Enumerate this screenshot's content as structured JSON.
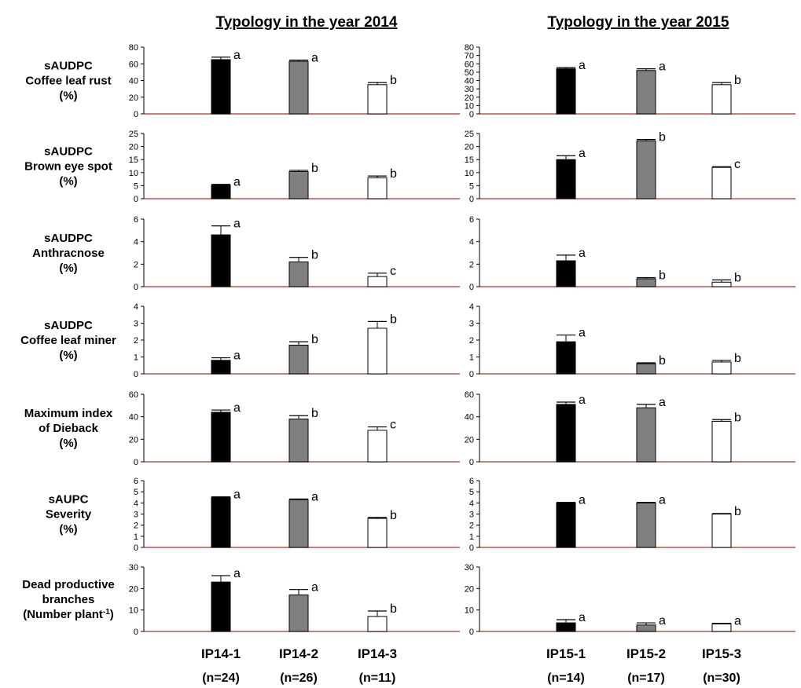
{
  "columns": [
    {
      "title": "Typology in the year 2014",
      "groups": [
        "IP14-1",
        "IP14-2",
        "IP14-3"
      ],
      "counts": [
        "(n=24)",
        "(n=26)",
        "(n=11)"
      ]
    },
    {
      "title": "Typology in the year 2015",
      "groups": [
        "IP15-1",
        "IP15-2",
        "IP15-3"
      ],
      "counts": [
        "(n=14)",
        "(n=17)",
        "(n=30)"
      ]
    }
  ],
  "colors": {
    "bars": [
      "#000000",
      "#808080",
      "#ffffff"
    ],
    "axis": "#000000",
    "baseline": "#c0504d"
  },
  "chart_data": [
    {
      "type": "bar",
      "row_label": [
        "sAUDPC",
        "Coffee leaf rust",
        "(%)"
      ],
      "year": "2014",
      "ylim": [
        0,
        80
      ],
      "yticks": [
        "0",
        "20",
        "40",
        "60",
        "80"
      ],
      "categories": [
        "IP14-1",
        "IP14-2",
        "IP14-3"
      ],
      "values": [
        65,
        63,
        35
      ],
      "errors": [
        3,
        1.5,
        2.5
      ],
      "letters": [
        "a",
        "a",
        "b"
      ]
    },
    {
      "type": "bar",
      "row_label": [
        "sAUDPC",
        "Coffee leaf rust",
        "(%)"
      ],
      "year": "2015",
      "ylim": [
        0,
        80
      ],
      "yticks": [
        "0",
        "10",
        "20",
        "30",
        "40",
        "50",
        "60",
        "70",
        "80"
      ],
      "categories": [
        "IP15-1",
        "IP15-2",
        "IP15-3"
      ],
      "values": [
        54,
        52,
        35
      ],
      "errors": [
        1.5,
        2,
        2.5
      ],
      "letters": [
        "a",
        "a",
        "b"
      ]
    },
    {
      "type": "bar",
      "row_label": [
        "sAUDPC",
        "Brown eye spot",
        "(%)"
      ],
      "year": "2014",
      "ylim": [
        0,
        25
      ],
      "yticks": [
        "0",
        "5",
        "10",
        "15",
        "20",
        "25"
      ],
      "categories": [
        "IP14-1",
        "IP14-2",
        "IP14-3"
      ],
      "values": [
        5.2,
        10.4,
        8.0
      ],
      "errors": [
        0.3,
        0.5,
        0.7
      ],
      "letters": [
        "a",
        "b",
        "b"
      ]
    },
    {
      "type": "bar",
      "row_label": [
        "sAUDPC",
        "Brown eye spot",
        "(%)"
      ],
      "year": "2015",
      "ylim": [
        0,
        25
      ],
      "yticks": [
        "0",
        "5",
        "10",
        "15",
        "20",
        "25"
      ],
      "categories": [
        "IP15-1",
        "IP15-2",
        "IP15-3"
      ],
      "values": [
        15,
        22.2,
        12
      ],
      "errors": [
        1.5,
        0.5,
        0.3
      ],
      "letters": [
        "a",
        "b",
        "c"
      ]
    },
    {
      "type": "bar",
      "row_label": [
        "sAUDPC",
        "Anthracnose",
        "(%)"
      ],
      "year": "2014",
      "ylim": [
        0,
        6
      ],
      "yticks": [
        "0",
        "2",
        "4",
        "6"
      ],
      "categories": [
        "IP14-1",
        "IP14-2",
        "IP14-3"
      ],
      "values": [
        4.6,
        2.2,
        0.9
      ],
      "errors": [
        0.8,
        0.4,
        0.3
      ],
      "letters": [
        "a",
        "b",
        "c"
      ]
    },
    {
      "type": "bar",
      "row_label": [
        "sAUDPC",
        "Anthracnose",
        "(%)"
      ],
      "year": "2015",
      "ylim": [
        0,
        6
      ],
      "yticks": [
        "0",
        "2",
        "4",
        "6"
      ],
      "categories": [
        "IP15-1",
        "IP15-2",
        "IP15-3"
      ],
      "values": [
        2.3,
        0.7,
        0.4
      ],
      "errors": [
        0.5,
        0.1,
        0.2
      ],
      "letters": [
        "a",
        "b",
        "b"
      ]
    },
    {
      "type": "bar",
      "row_label": [
        "sAUDPC",
        "Coffee leaf miner",
        "(%)"
      ],
      "year": "2014",
      "ylim": [
        0,
        4
      ],
      "yticks": [
        "0",
        "1",
        "2",
        "3",
        "4"
      ],
      "categories": [
        "IP14-1",
        "IP14-2",
        "IP14-3"
      ],
      "values": [
        0.8,
        1.7,
        2.7
      ],
      "errors": [
        0.15,
        0.2,
        0.4
      ],
      "letters": [
        "a",
        "b",
        "b"
      ]
    },
    {
      "type": "bar",
      "row_label": [
        "sAUDPC",
        "Coffee leaf miner",
        "(%)"
      ],
      "year": "2015",
      "ylim": [
        0,
        4
      ],
      "yticks": [
        "0",
        "1",
        "2",
        "3",
        "4"
      ],
      "categories": [
        "IP15-1",
        "IP15-2",
        "IP15-3"
      ],
      "values": [
        1.9,
        0.6,
        0.7
      ],
      "errors": [
        0.4,
        0.05,
        0.1
      ],
      "letters": [
        "a",
        "b",
        "b"
      ]
    },
    {
      "type": "bar",
      "row_label": [
        "Maximum  index",
        "of Dieback",
        "(%)"
      ],
      "year": "2014",
      "ylim": [
        0,
        60
      ],
      "yticks": [
        "0",
        "20",
        "40",
        "60"
      ],
      "categories": [
        "IP14-1",
        "IP14-2",
        "IP14-3"
      ],
      "values": [
        44,
        38,
        28
      ],
      "errors": [
        2,
        3,
        3
      ],
      "letters": [
        "a",
        "b",
        "c"
      ]
    },
    {
      "type": "bar",
      "row_label": [
        "Maximum  index",
        "of Dieback",
        "(%)"
      ],
      "year": "2015",
      "ylim": [
        0,
        60
      ],
      "yticks": [
        "0",
        "20",
        "40",
        "60"
      ],
      "categories": [
        "IP15-1",
        "IP15-2",
        "IP15-3"
      ],
      "values": [
        51,
        48,
        36
      ],
      "errors": [
        2,
        3,
        1.5
      ],
      "letters": [
        "a",
        "a",
        "b"
      ]
    },
    {
      "type": "bar",
      "row_label": [
        "sAUPC",
        "Severity",
        "(%)"
      ],
      "year": "2014",
      "ylim": [
        0,
        6
      ],
      "yticks": [
        "0",
        "1",
        "2",
        "3",
        "4",
        "5",
        "6"
      ],
      "categories": [
        "IP14-1",
        "IP14-2",
        "IP14-3"
      ],
      "values": [
        4.5,
        4.3,
        2.6
      ],
      "errors": [
        0.05,
        0.05,
        0.1
      ],
      "letters": [
        "a",
        "a",
        "b"
      ]
    },
    {
      "type": "bar",
      "row_label": [
        "sAUPC",
        "Severity",
        "(%)"
      ],
      "year": "2015",
      "ylim": [
        0,
        6
      ],
      "yticks": [
        "0",
        "1",
        "2",
        "3",
        "4",
        "5",
        "6"
      ],
      "categories": [
        "IP15-1",
        "IP15-2",
        "IP15-3"
      ],
      "values": [
        4,
        4,
        3
      ],
      "errors": [
        0.05,
        0.05,
        0.05
      ],
      "letters": [
        "a",
        "a",
        "b"
      ]
    },
    {
      "type": "bar",
      "row_label": [
        "Dead productive",
        "branches",
        "(Number plant",
        "-1",
        ")"
      ],
      "year": "2014",
      "ylim": [
        0,
        30
      ],
      "yticks": [
        "0",
        "10",
        "20",
        "30"
      ],
      "categories": [
        "IP14-1",
        "IP14-2",
        "IP14-3"
      ],
      "values": [
        23,
        17,
        7
      ],
      "errors": [
        3,
        2.5,
        2.5
      ],
      "letters": [
        "a",
        "a",
        "b"
      ]
    },
    {
      "type": "bar",
      "row_label": [
        "Dead productive",
        "branches",
        "(Number plant",
        "-1",
        ")"
      ],
      "year": "2015",
      "ylim": [
        0,
        30
      ],
      "yticks": [
        "0",
        "10",
        "20",
        "30"
      ],
      "categories": [
        "IP15-1",
        "IP15-2",
        "IP15-3"
      ],
      "values": [
        4,
        3,
        3.5
      ],
      "errors": [
        1.5,
        1,
        0.3
      ],
      "letters": [
        "a",
        "a",
        "a"
      ]
    }
  ]
}
